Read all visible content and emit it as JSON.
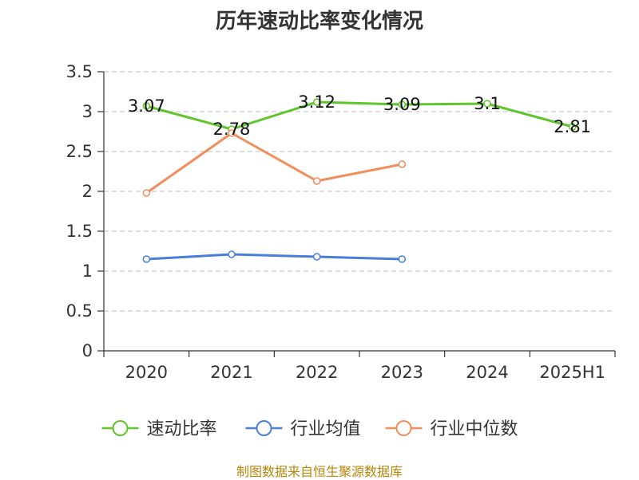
{
  "chart_data": {
    "type": "line",
    "title": "历年速动比率变化情况",
    "categories": [
      "2020",
      "2021",
      "2022",
      "2023",
      "2024",
      "2025H1"
    ],
    "y_ticks": [
      "0",
      "0.5",
      "1",
      "1.5",
      "2",
      "2.5",
      "3",
      "3.5"
    ],
    "ylim": [
      0,
      3.5
    ],
    "grid": true,
    "legend_position": "bottom",
    "series": [
      {
        "name": "速动比率",
        "color": "#5ec52c",
        "values": [
          3.07,
          2.78,
          3.12,
          3.09,
          3.1,
          2.81
        ],
        "labels": [
          "3.07",
          "2.78",
          "3.12",
          "3.09",
          "3.1",
          "2.81"
        ]
      },
      {
        "name": "行业均值",
        "color": "#4a7fd9",
        "values": [
          1.15,
          1.21,
          1.18,
          1.15,
          null,
          null
        ],
        "labels": []
      },
      {
        "name": "行业中位数",
        "color": "#f28e5c",
        "values": [
          1.98,
          2.73,
          2.13,
          2.34,
          null,
          null
        ],
        "labels": []
      }
    ]
  },
  "source": "制图数据来自恒生聚源数据库"
}
